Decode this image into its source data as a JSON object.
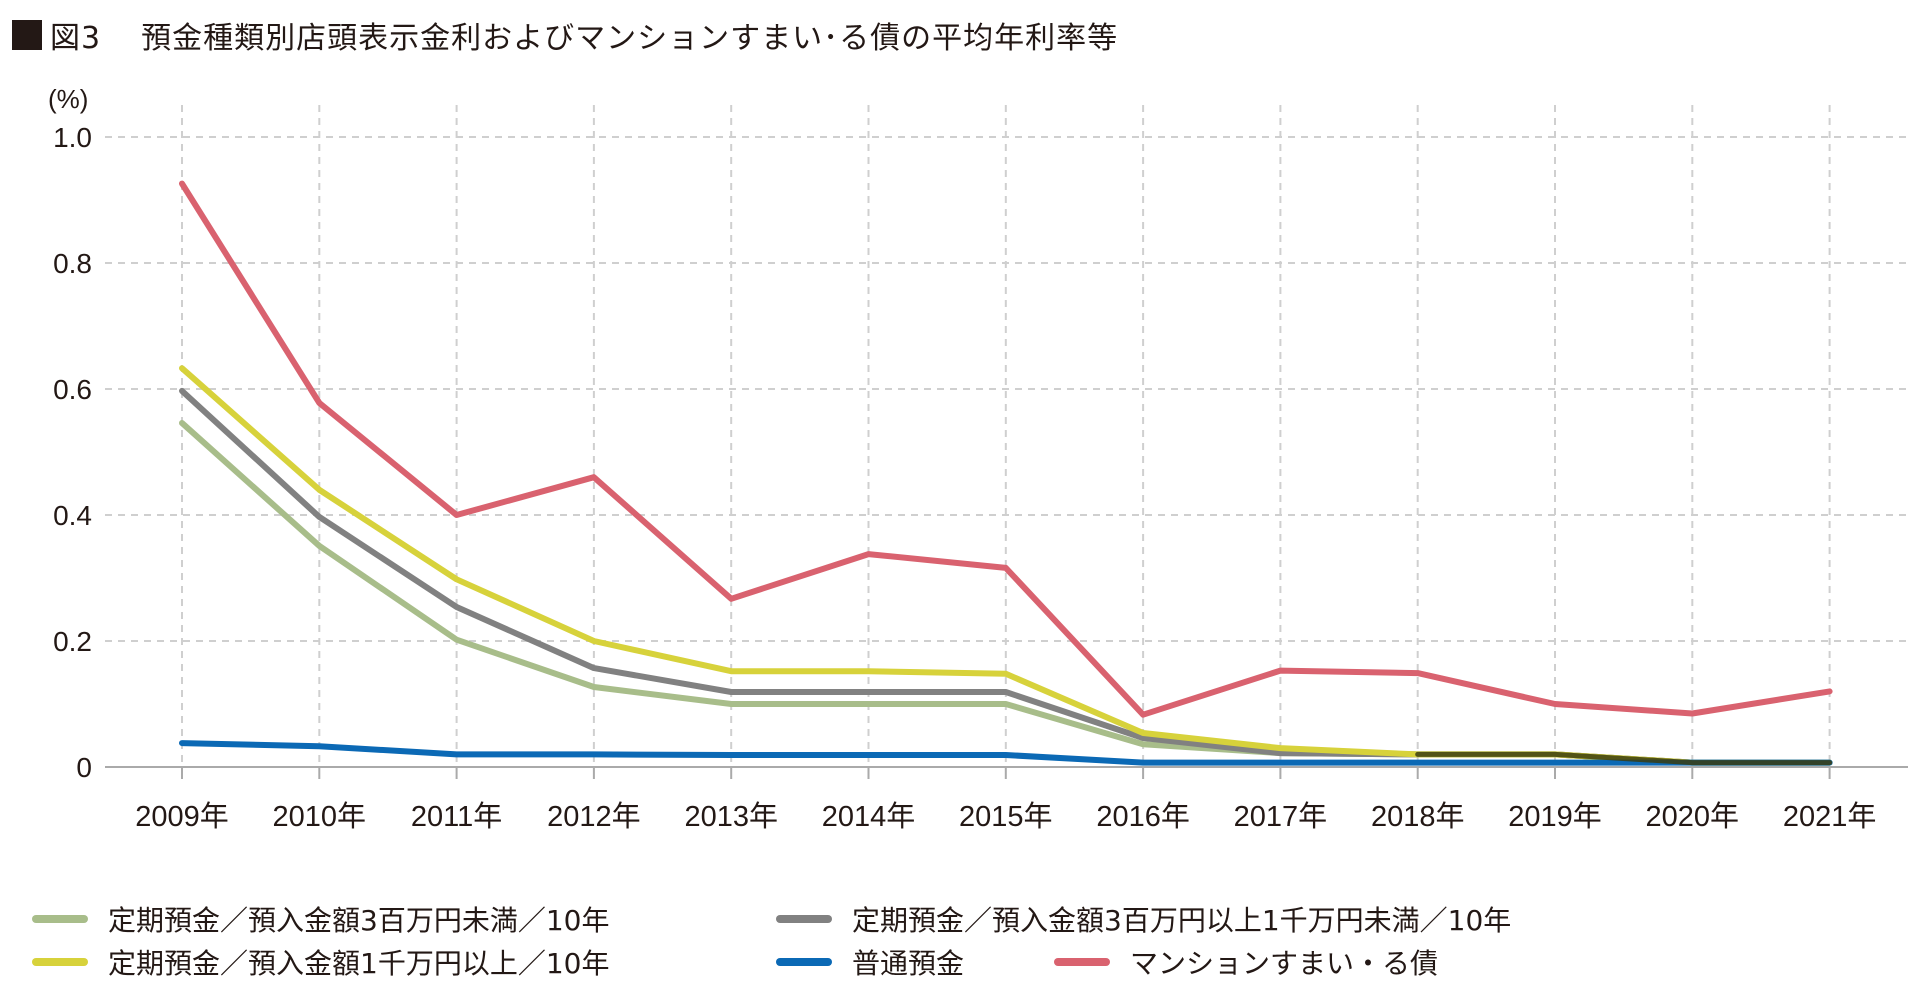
{
  "figure": {
    "number": "図3",
    "title": "預金種類別店頭表示金利およびマンションすまい･る債の平均年利率等"
  },
  "chart_data": {
    "type": "line",
    "title": "預金種類別店頭表示金利およびマンションすまい･る債の平均年利率等",
    "xlabel": "",
    "ylabel": "(%)",
    "ylim": [
      0,
      1.0
    ],
    "yticks": [
      0,
      0.2,
      0.4,
      0.6,
      0.8,
      1.0
    ],
    "ytick_labels": [
      "0",
      "0.2",
      "0.4",
      "0.6",
      "0.8",
      "1.0"
    ],
    "grid": true,
    "legend_position": "bottom",
    "categories": [
      "2009年",
      "2010年",
      "2011年",
      "2012年",
      "2013年",
      "2014年",
      "2015年",
      "2016年",
      "2017年",
      "2018年",
      "2019年",
      "2020年",
      "2021年"
    ],
    "series": [
      {
        "name": "定期預金／預入金額3百万円未満／10年",
        "color": "#a8bd8a",
        "values": [
          0.546,
          0.351,
          0.202,
          0.127,
          0.1,
          0.1,
          0.1,
          0.036,
          0.022,
          0.02,
          0.02,
          0.007,
          0.007
        ]
      },
      {
        "name": "定期預金／預入金額3百万円以上1千万円未満／10年",
        "color": "#818181",
        "values": [
          0.597,
          0.397,
          0.254,
          0.157,
          0.119,
          0.119,
          0.119,
          0.046,
          0.022,
          0.02,
          0.02,
          0.007,
          0.007
        ]
      },
      {
        "name": "定期預金／預入金額1千万円以上／10年",
        "color": "#d7d23b",
        "values": [
          0.633,
          0.44,
          0.298,
          0.2,
          0.152,
          0.152,
          0.148,
          0.054,
          0.03,
          0.02,
          0.02,
          0.007,
          0.007
        ]
      },
      {
        "name": "普通預金",
        "color": "#0b69b5",
        "values": [
          0.038,
          0.033,
          0.02,
          0.02,
          0.019,
          0.019,
          0.019,
          0.007,
          0.007,
          0.007,
          0.007,
          0.007,
          0.007
        ]
      },
      {
        "name": "マンションすまい・る債",
        "color": "#d9626f",
        "values": [
          0.926,
          0.578,
          0.4,
          0.46,
          0.267,
          0.338,
          0.316,
          0.083,
          0.153,
          0.149,
          0.1,
          0.085,
          0.12
        ]
      }
    ],
    "draw_order": [
      0,
      1,
      2,
      3,
      4
    ]
  },
  "legend": {
    "items": [
      {
        "label": "定期預金／預入金額3百万円未満／10年",
        "color": "#a8bd8a"
      },
      {
        "label": "定期預金／預入金額3百万円以上1千万円未満／10年",
        "color": "#818181"
      },
      {
        "label": "定期預金／預入金額1千万円以上／10年",
        "color": "#d7d23b"
      },
      {
        "label": "普通預金",
        "color": "#0b69b5"
      },
      {
        "label": "マンションすまい・る債",
        "color": "#d9626f"
      }
    ]
  }
}
